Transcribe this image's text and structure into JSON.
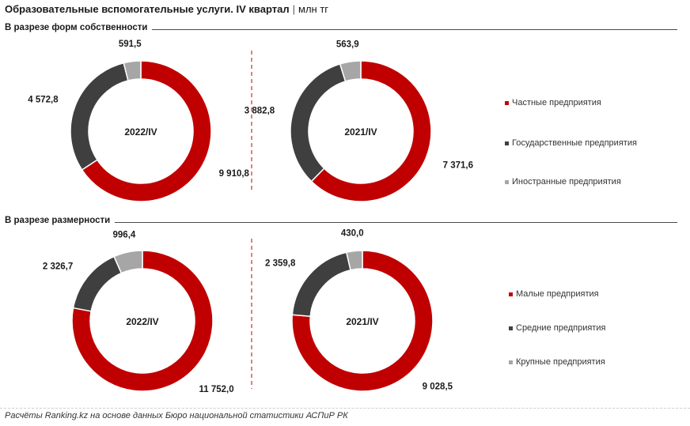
{
  "title": "Образовательные вспомогательные услуги. IV квартал",
  "separator": "|",
  "unit": "млн тг",
  "footer": "Расчёты Ranking.kz на основе данных Бюро национальной статистики АСПиР РК",
  "colors": {
    "first": "#c00000",
    "second": "#3f3f3f",
    "third": "#a6a6a6",
    "divider": "#c00000"
  },
  "chart_data": [
    {
      "type": "pie",
      "section": "В разрезе форм собственности",
      "legend": [
        "Частные предприятия",
        "Государственные предприятия",
        "Иностранные предприятия"
      ],
      "donuts": [
        {
          "center_label": "2022/IV",
          "values": [
            9910.8,
            4572.8,
            591.5
          ],
          "labels": [
            "9 910,8",
            "4 572,8",
            "591,5"
          ]
        },
        {
          "center_label": "2021/IV",
          "values": [
            7371.6,
            3882.8,
            563.9
          ],
          "labels": [
            "7 371,6",
            "3 882,8",
            "563,9"
          ]
        }
      ]
    },
    {
      "type": "pie",
      "section": "В разрезе размерности",
      "legend": [
        "Малые предприятия",
        "Средние предприятия",
        "Крупные предприятия"
      ],
      "donuts": [
        {
          "center_label": "2022/IV",
          "values": [
            11752.0,
            2326.7,
            996.4
          ],
          "labels": [
            "11 752,0",
            "2 326,7",
            "996,4"
          ]
        },
        {
          "center_label": "2021/IV",
          "values": [
            9028.5,
            2359.8,
            430.0
          ],
          "labels": [
            "9 028,5",
            "2 359,8",
            "430,0"
          ]
        }
      ]
    }
  ]
}
